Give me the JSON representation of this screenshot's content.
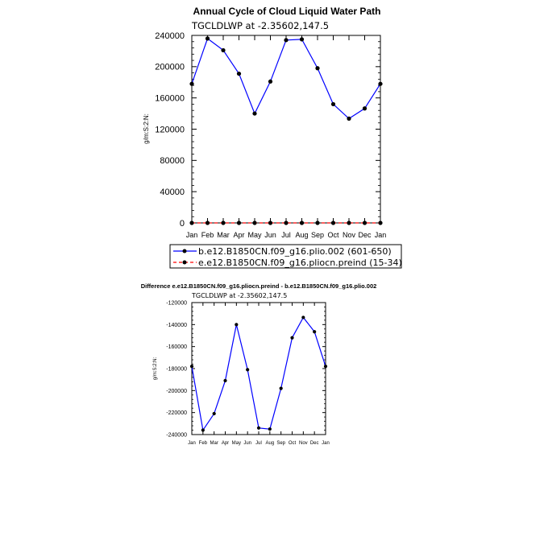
{
  "colors": {
    "series_control": "#0000ff",
    "series_case": "#ff0000",
    "markers": "#000000"
  },
  "chart_data": [
    {
      "type": "line",
      "title": "Annual Cycle of Cloud Liquid Water Path",
      "subtitle": "TGCLDLWP  at  -2.35602,147.5",
      "ylabel": "g/m:S:2:N:",
      "xlabel": "",
      "categories": [
        "Jan",
        "Feb",
        "Mar",
        "Apr",
        "May",
        "Jun",
        "Jul",
        "Aug",
        "Sep",
        "Oct",
        "Nov",
        "Dec",
        "Jan"
      ],
      "ylim": [
        0,
        240000
      ],
      "yticks": [
        0,
        40000,
        80000,
        120000,
        160000,
        200000,
        240000
      ],
      "ytick_labels": [
        "0",
        "40000",
        "80000",
        "120000",
        "160000",
        "200000",
        "240000"
      ],
      "grid": false,
      "legend_position": "bottom",
      "series": [
        {
          "name": "b.e12.B1850CN.f09_g16.plio.002 (601-650)",
          "line": "solid",
          "color": "blue",
          "values": [
            178000,
            236000,
            221000,
            191000,
            140000,
            181000,
            234000,
            235000,
            198000,
            152000,
            133500,
            146500,
            178000
          ]
        },
        {
          "name": "e.e12.B1850CN.f09_g16.pliocn.preind (15-34)",
          "line": "dashed",
          "color": "red",
          "values": [
            0,
            0,
            0,
            0,
            0,
            0,
            0,
            0,
            0,
            0,
            0,
            0,
            0
          ]
        }
      ]
    },
    {
      "type": "line",
      "title": "Difference e.e12.B1850CN.f09_g16.pliocn.preind - b.e12.B1850CN.f09_g16.plio.002",
      "subtitle": "TGCLDLWP  at  -2.35602,147.5",
      "ylabel": "g/m:S:2:N:",
      "xlabel": "",
      "categories": [
        "Jan",
        "Feb",
        "Mar",
        "Apr",
        "May",
        "Jun",
        "Jul",
        "Aug",
        "Sep",
        "Oct",
        "Nov",
        "Dec",
        "Jan"
      ],
      "ylim": [
        -240000,
        -120000
      ],
      "yticks": [
        -240000,
        -220000,
        -200000,
        -180000,
        -160000,
        -140000,
        -120000
      ],
      "ytick_labels": [
        "-240000",
        "-220000",
        "-200000",
        "-180000",
        "-160000",
        "-140000",
        "-120000"
      ],
      "grid": false,
      "series": [
        {
          "line": "solid",
          "color": "blue",
          "values": [
            -178000,
            -236000,
            -221000,
            -191000,
            -140000,
            -181000,
            -234000,
            -235000,
            -198000,
            -152000,
            -133500,
            -146500,
            -178000
          ]
        }
      ]
    }
  ]
}
